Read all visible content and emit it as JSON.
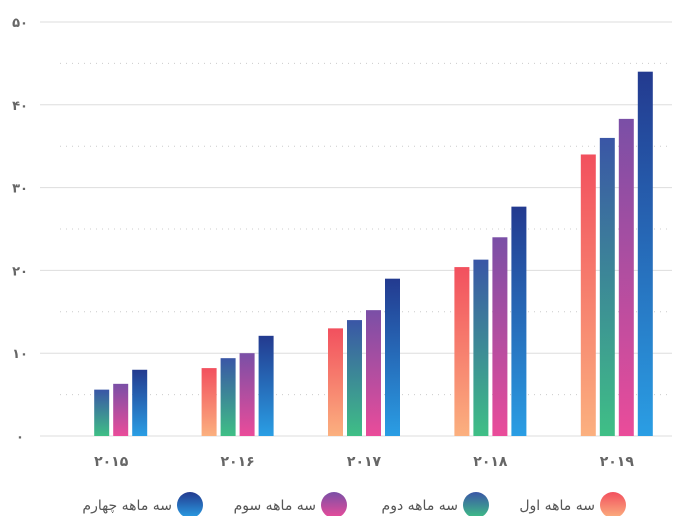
{
  "chart_data": {
    "type": "bar",
    "categories": [
      "۲۰۱۵",
      "۲۰۱۶",
      "۲۰۱۷",
      "۲۰۱۸",
      "۲۰۱۹"
    ],
    "series": [
      {
        "name": "سه ماهه اول",
        "values": [
          0,
          8.2,
          13,
          20.4,
          34
        ]
      },
      {
        "name": "سه ماهه دوم",
        "values": [
          5.6,
          9.4,
          14,
          21.3,
          36
        ]
      },
      {
        "name": "سه ماهه سوم",
        "values": [
          6.3,
          10,
          15.2,
          24,
          38.3
        ]
      },
      {
        "name": "سه ماهه چهارم",
        "values": [
          8,
          12.1,
          19,
          27.7,
          44
        ]
      }
    ],
    "ylim": [
      0,
      50
    ],
    "yticks": [
      "۰",
      "۱۰",
      "۲۰",
      "۳۰",
      "۴۰",
      "۵۰"
    ],
    "ytick_values": [
      0,
      10,
      20,
      30,
      40,
      50
    ],
    "grid": true,
    "legend_position": "bottom",
    "colors": {
      "q1": [
        "#f2505e",
        "#fbb07f"
      ],
      "q2": [
        "#3a56a6",
        "#3fbf86"
      ],
      "q3": [
        "#7a4fa6",
        "#ea4c9a"
      ],
      "q4": [
        "#233a8f",
        "#2a9ee4"
      ],
      "grid": "#dddddd",
      "minor_grid": "#cccccc"
    }
  }
}
